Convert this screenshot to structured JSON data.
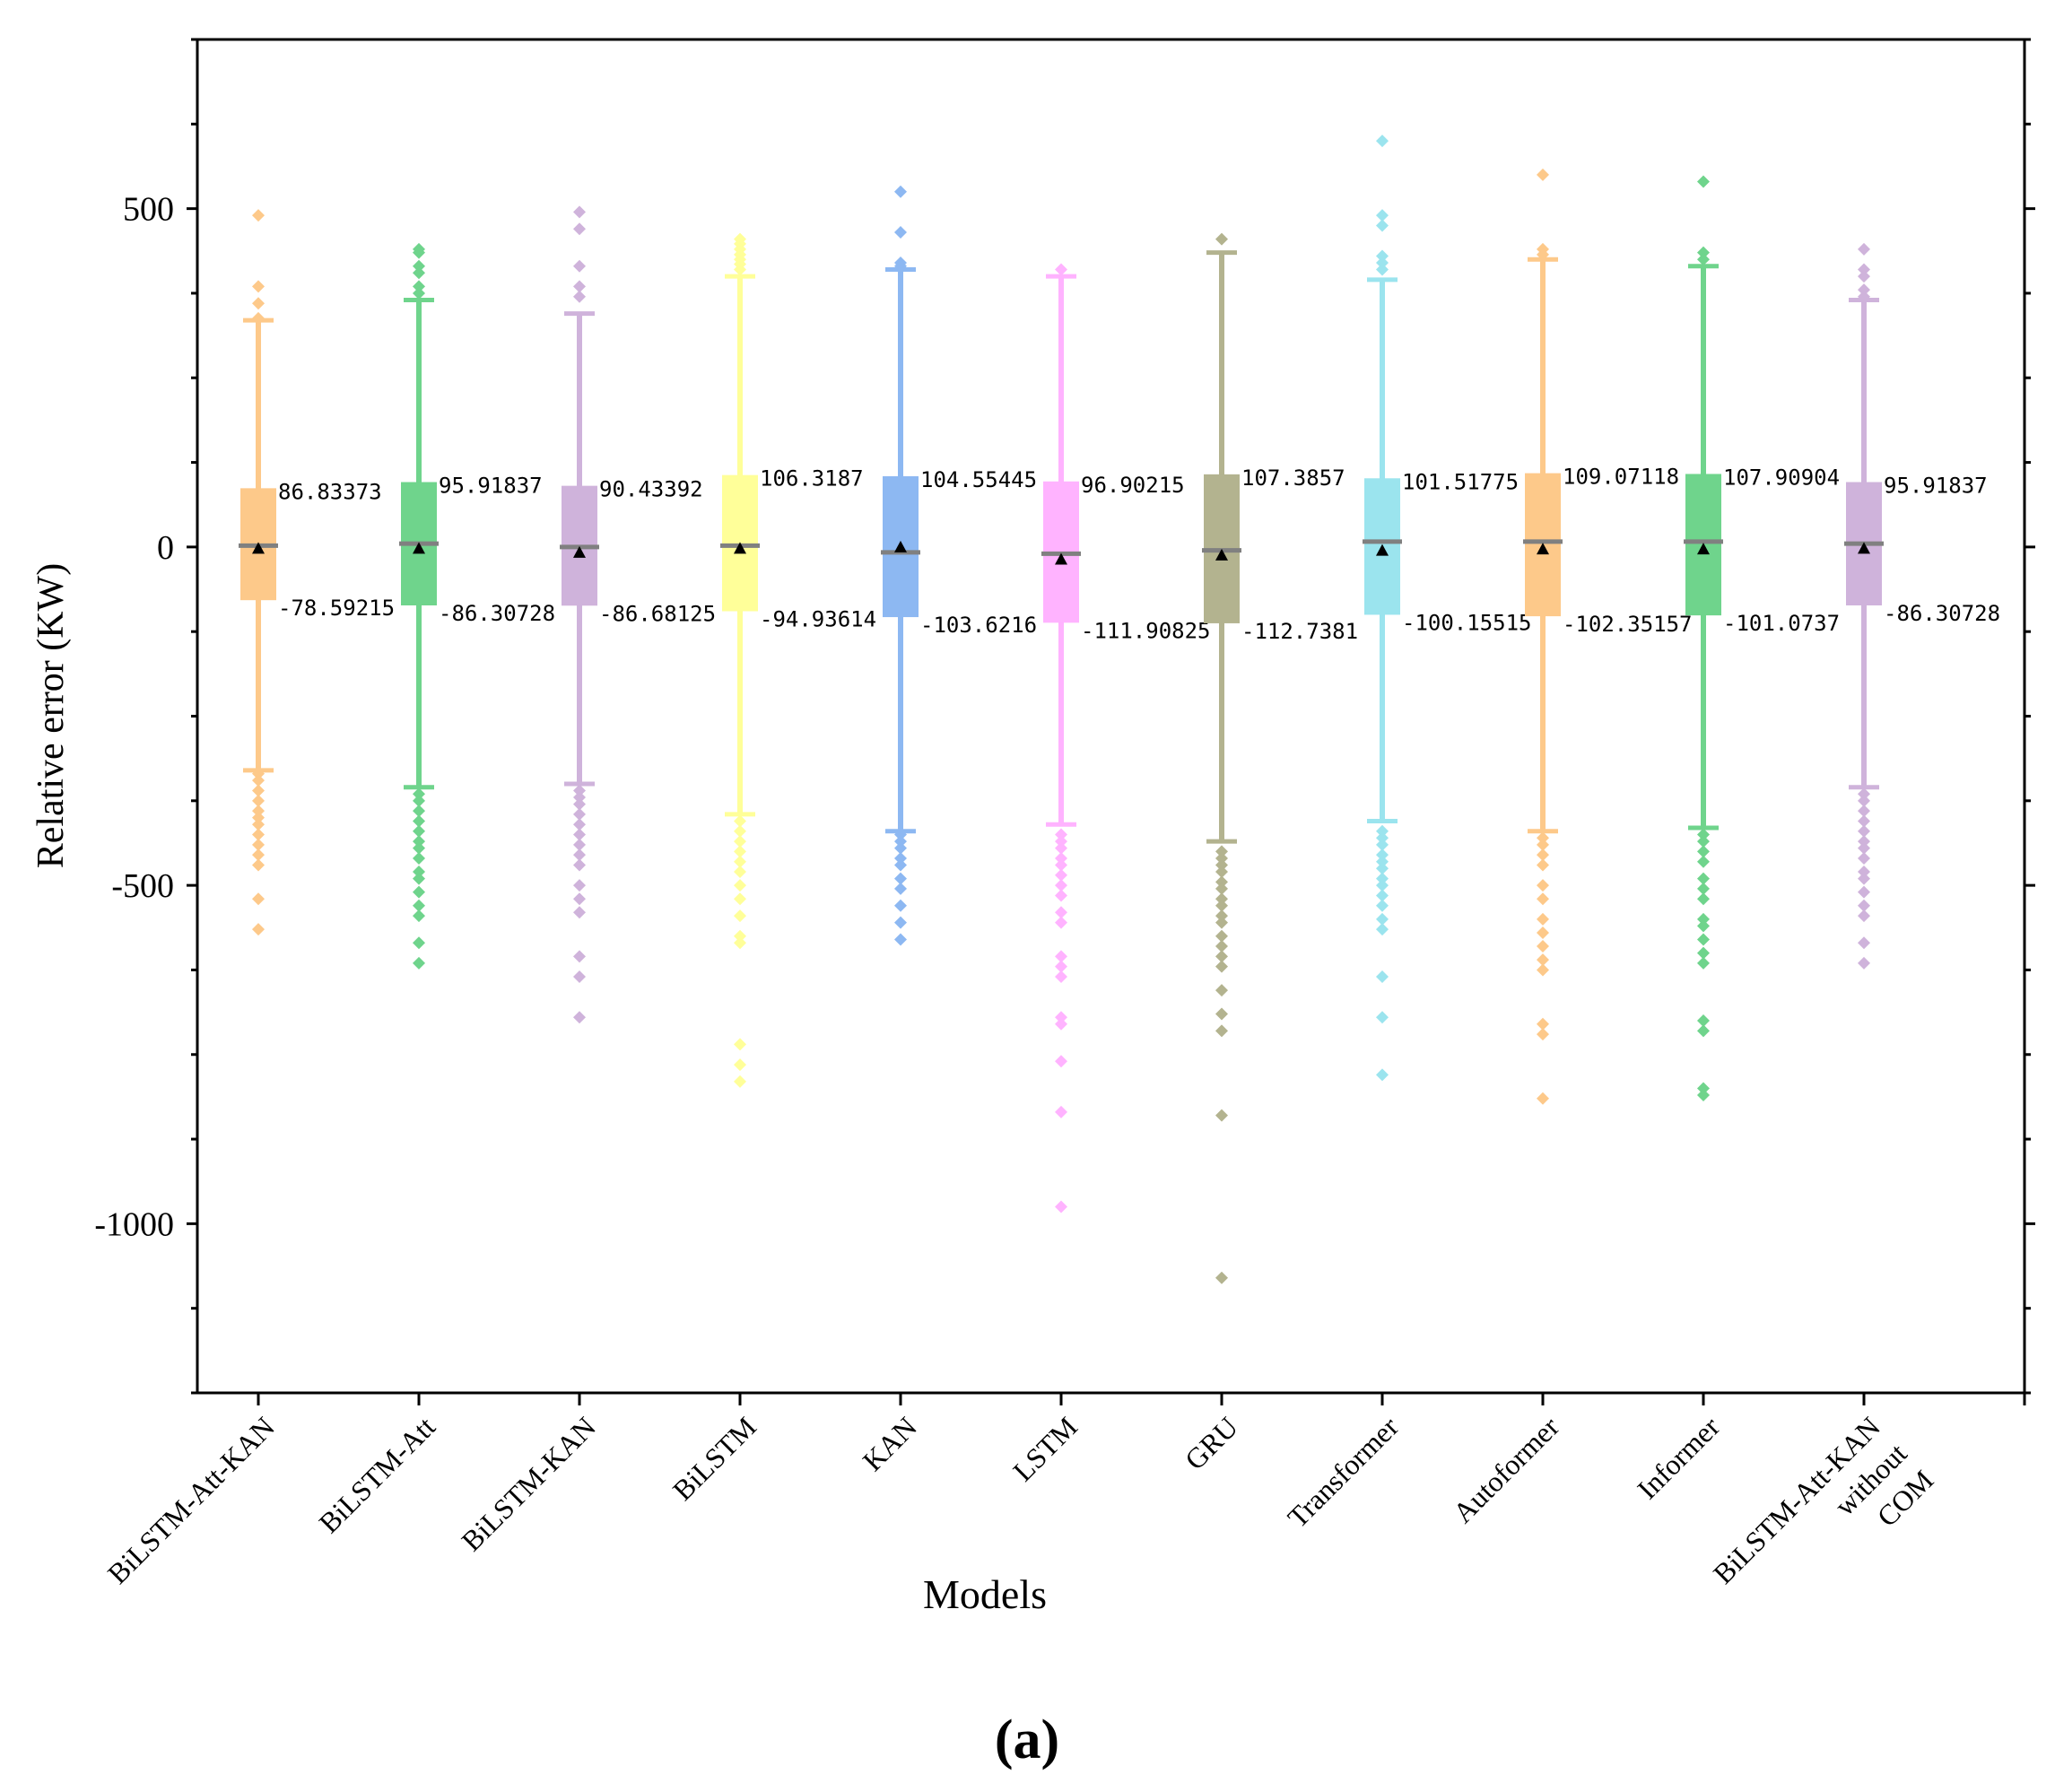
{
  "chart_data": {
    "type": "box",
    "panel_label": "(a)",
    "title": "",
    "xlabel": "Models",
    "ylabel": "Relative  error (KW)",
    "ylim": [
      -1250,
      750
    ],
    "yticks": [
      500,
      0,
      -500,
      -1000
    ],
    "ytick_labels": [
      "500",
      "0",
      "-500",
      "-1000"
    ],
    "legend": "none",
    "series": [
      {
        "name": "BiLSTM-Att-KAN",
        "label_lines": [
          "BiLSTM-Att-KAN"
        ],
        "color": "#FDC98A",
        "q1": -78.59215,
        "q3": 86.83373,
        "median": 2,
        "mean": -2,
        "whisker_low": -330,
        "whisker_high": 335,
        "q3_label": "86.83373",
        "q1_label": "-78.59215",
        "outliers": [
          490,
          385,
          360,
          338,
          -335,
          -345,
          -360,
          -375,
          -390,
          -400,
          -410,
          -425,
          -440,
          -455,
          -470,
          -520,
          -565
        ]
      },
      {
        "name": "BiLSTM-Att",
        "label_lines": [
          "BiLSTM-Att"
        ],
        "color": "#6FD48C",
        "q1": -86.30728,
        "q3": 95.91837,
        "median": 5,
        "mean": -2,
        "whisker_low": -355,
        "whisker_high": 365,
        "q3_label": "95.91837",
        "q1_label": "-86.30728",
        "outliers": [
          440,
          435,
          415,
          405,
          385,
          375,
          -365,
          -375,
          -390,
          -405,
          -420,
          -435,
          -445,
          -460,
          -480,
          -490,
          -510,
          -530,
          -545,
          -585,
          -615
        ]
      },
      {
        "name": "BiLSTM-KAN",
        "label_lines": [
          "BiLSTM-KAN"
        ],
        "color": "#CFB3DB",
        "q1": -86.68125,
        "q3": 90.43392,
        "median": 0,
        "mean": -8,
        "whisker_low": -350,
        "whisker_high": 345,
        "q3_label": "90.43392",
        "q1_label": "-86.68125",
        "outliers": [
          495,
          470,
          415,
          385,
          370,
          -360,
          -370,
          -380,
          -395,
          -410,
          -425,
          -440,
          -455,
          -470,
          -500,
          -520,
          -540,
          -605,
          -635,
          -695
        ]
      },
      {
        "name": "BiLSTM",
        "label_lines": [
          "BiLSTM"
        ],
        "color": "#FFFF99",
        "q1": -94.93614,
        "q3": 106.3187,
        "median": 2,
        "mean": -2,
        "whisker_low": -395,
        "whisker_high": 400,
        "q3_label": "106.3187",
        "q1_label": "-94.93614",
        "outliers": [
          455,
          448,
          440,
          432,
          425,
          418,
          410,
          -405,
          -420,
          -435,
          -450,
          -465,
          -480,
          -500,
          -520,
          -545,
          -575,
          -585,
          -735,
          -765,
          -790
        ]
      },
      {
        "name": "KAN",
        "label_lines": [
          "KAN"
        ],
        "color": "#8DB8F2",
        "q1": -103.6216,
        "q3": 104.55445,
        "median": -8,
        "mean": 0,
        "whisker_low": -420,
        "whisker_high": 410,
        "q3_label": "104.55445",
        "q1_label": "-103.6216",
        "outliers": [
          525,
          465,
          420,
          415,
          -425,
          -435,
          -445,
          -460,
          -470,
          -490,
          -505,
          -530,
          -555,
          -580
        ]
      },
      {
        "name": "LSTM",
        "label_lines": [
          "LSTM"
        ],
        "color": "#FFB3FF",
        "q1": -111.90825,
        "q3": 96.90215,
        "median": -10,
        "mean": -18,
        "whisker_low": -410,
        "whisker_high": 400,
        "q3_label": "96.90215",
        "q1_label": "-111.90825",
        "outliers": [
          410,
          -425,
          -435,
          -445,
          -460,
          -470,
          -485,
          -500,
          -515,
          -540,
          -555,
          -605,
          -620,
          -635,
          -695,
          -705,
          -760,
          -835,
          -975
        ]
      },
      {
        "name": "GRU",
        "label_lines": [
          "GRU"
        ],
        "color": "#B3B38F",
        "q1": -112.7381,
        "q3": 107.3857,
        "median": -5,
        "mean": -12,
        "whisker_low": -435,
        "whisker_high": 435,
        "q3_label": "107.3857",
        "q1_label": "-112.7381",
        "outliers": [
          455,
          -450,
          -460,
          -470,
          -480,
          -495,
          -505,
          -520,
          -530,
          -545,
          -555,
          -575,
          -590,
          -605,
          -620,
          -655,
          -690,
          -715,
          -840,
          -1080
        ]
      },
      {
        "name": "Transformer",
        "label_lines": [
          "Transformer"
        ],
        "color": "#9BE4EE",
        "q1": -100.15515,
        "q3": 101.51775,
        "median": 8,
        "mean": -5,
        "whisker_low": -405,
        "whisker_high": 395,
        "q3_label": "101.51775",
        "q1_label": "-100.15515",
        "outliers": [
          600,
          490,
          475,
          430,
          420,
          410,
          -420,
          -430,
          -440,
          -455,
          -465,
          -475,
          -490,
          -500,
          -515,
          -530,
          -550,
          -565,
          -635,
          -695,
          -780
        ]
      },
      {
        "name": "Autoformer",
        "label_lines": [
          "Autoformer"
        ],
        "color": "#FDC98A",
        "q1": -102.35157,
        "q3": 109.07118,
        "median": 8,
        "mean": -3,
        "whisker_low": -420,
        "whisker_high": 425,
        "q3_label": "109.07118",
        "q1_label": "-102.35157",
        "outliers": [
          550,
          440,
          432,
          -430,
          -440,
          -455,
          -470,
          -500,
          -520,
          -550,
          -570,
          -590,
          -610,
          -625,
          -705,
          -720,
          -815
        ]
      },
      {
        "name": "Informer",
        "label_lines": [
          "Informer"
        ],
        "color": "#6FD48C",
        "q1": -101.0737,
        "q3": 107.90904,
        "median": 8,
        "mean": -3,
        "whisker_low": -415,
        "whisker_high": 415,
        "q3_label": "107.90904",
        "q1_label": "-101.0737",
        "outliers": [
          540,
          435,
          425,
          -425,
          -435,
          -450,
          -465,
          -490,
          -505,
          -520,
          -550,
          -560,
          -580,
          -600,
          -615,
          -700,
          -715,
          -800,
          -810
        ]
      },
      {
        "name": "BiLSTM-Att-KAN without COM",
        "label_lines": [
          "BiLSTM-Att-KAN",
          "without",
          "COM"
        ],
        "color": "#CFB3DB",
        "q1": -86.30728,
        "q3": 95.91837,
        "median": 5,
        "mean": -2,
        "whisker_low": -355,
        "whisker_high": 365,
        "q3_label": "95.91837",
        "q1_label": "-86.30728",
        "outliers": [
          440,
          410,
          400,
          380,
          370,
          -365,
          -375,
          -390,
          -405,
          -420,
          -435,
          -445,
          -460,
          -480,
          -490,
          -510,
          -530,
          -545,
          -585,
          -615
        ]
      }
    ]
  }
}
